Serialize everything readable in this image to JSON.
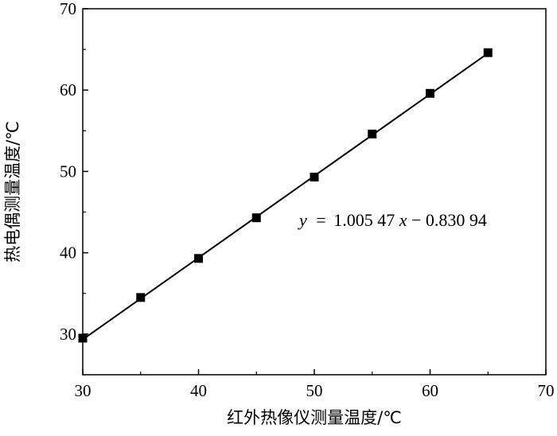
{
  "chart_data": {
    "type": "scatter",
    "title": "",
    "xlabel": "红外热像仪测量温度/℃",
    "ylabel": "热电偶测量温度/℃",
    "xlim": [
      30,
      70
    ],
    "ylim": [
      25,
      70
    ],
    "x_ticks": [
      "30",
      "40",
      "50",
      "60",
      "70"
    ],
    "y_ticks": [
      "30",
      "40",
      "50",
      "60",
      "70"
    ],
    "series": [
      {
        "x": [
          30,
          35,
          40,
          45,
          50,
          55,
          60,
          65
        ],
        "y": [
          29.5,
          34.5,
          39.3,
          44.3,
          49.3,
          54.6,
          59.6,
          64.6
        ],
        "marker": "square",
        "color": "#000000"
      }
    ],
    "fit_line": {
      "slope": 1.00547,
      "intercept": -0.83094,
      "x_range": [
        30,
        65
      ],
      "color": "#000000"
    },
    "annotation": {
      "y_var": "y",
      "eq_sign": "=",
      "coef": "1.005 47",
      "x_var": "x",
      "minus": "−",
      "const": "0.830 94"
    },
    "grid": false,
    "legend": "none"
  }
}
